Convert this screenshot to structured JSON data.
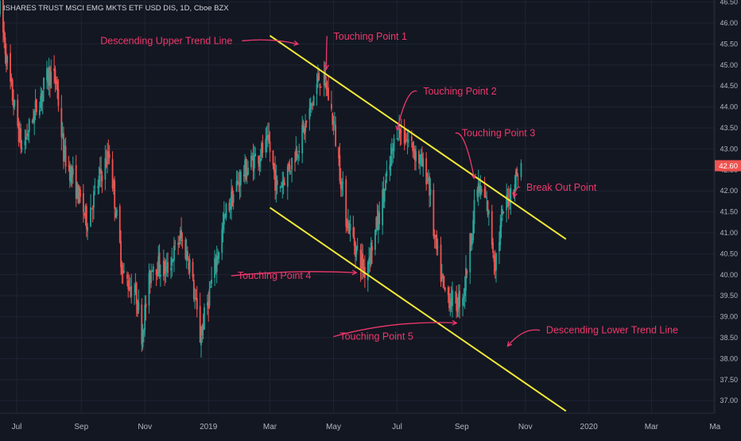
{
  "header": {
    "title": "ISHARES TRUST MSCI EMG MKTS ETF USD DIS, 1D, Cboe BZX"
  },
  "colors": {
    "background": "#131722",
    "grid": "#1e2433",
    "up": "#26a69a",
    "down": "#ef5350",
    "trend_line": "#f0e936",
    "annotation": "#f0386b",
    "price_badge": "#ef5350"
  },
  "chart_data": {
    "type": "candlestick",
    "title": "ISHARES TRUST MSCI EMG MKTS ETF USD DIS, 1D, Cboe BZX",
    "y_axis": {
      "position": "right",
      "ylim": [
        36.7,
        46.55
      ],
      "ticks": [
        "37.00",
        "37.50",
        "38.00",
        "38.50",
        "39.00",
        "39.50",
        "40.00",
        "40.50",
        "41.00",
        "41.50",
        "42.00",
        "42.50",
        "43.00",
        "43.50",
        "44.00",
        "44.50",
        "45.00",
        "45.50",
        "46.00",
        "46.50"
      ]
    },
    "x_axis": {
      "type": "date",
      "range": [
        "2018-06-15",
        "2020-04-30"
      ],
      "ticks": [
        {
          "label": "Jul",
          "date": "2018-07-01"
        },
        {
          "label": "Sep",
          "date": "2018-09-01"
        },
        {
          "label": "Nov",
          "date": "2018-11-01"
        },
        {
          "label": "2019",
          "date": "2019-01-01"
        },
        {
          "label": "Mar",
          "date": "2019-03-01"
        },
        {
          "label": "May",
          "date": "2019-05-01"
        },
        {
          "label": "Jul",
          "date": "2019-07-01"
        },
        {
          "label": "Sep",
          "date": "2019-09-01"
        },
        {
          "label": "Nov",
          "date": "2019-11-01"
        },
        {
          "label": "2020",
          "date": "2020-01-01"
        },
        {
          "label": "Mar",
          "date": "2020-03-01"
        },
        {
          "label": "Ma",
          "date": "2020-05-01"
        }
      ]
    },
    "grid": true,
    "current_price": "42.60",
    "price_path": [
      [
        "2018-06-15",
        46.3
      ],
      [
        "2018-06-25",
        44.5
      ],
      [
        "2018-07-06",
        43.0
      ],
      [
        "2018-07-20",
        44.0
      ],
      [
        "2018-08-01",
        44.8
      ],
      [
        "2018-08-08",
        44.6
      ],
      [
        "2018-08-15",
        42.9
      ],
      [
        "2018-08-24",
        42.3
      ],
      [
        "2018-09-06",
        41.3
      ],
      [
        "2018-09-20",
        42.4
      ],
      [
        "2018-09-28",
        42.9
      ],
      [
        "2018-10-11",
        40.0
      ],
      [
        "2018-10-24",
        39.5
      ],
      [
        "2018-10-29",
        38.6
      ],
      [
        "2018-11-08",
        40.3
      ],
      [
        "2018-11-22",
        40.1
      ],
      [
        "2018-12-05",
        40.9
      ],
      [
        "2018-12-14",
        40.3
      ],
      [
        "2018-12-24",
        38.5
      ],
      [
        "2019-01-04",
        39.8
      ],
      [
        "2019-01-18",
        41.5
      ],
      [
        "2019-01-31",
        42.3
      ],
      [
        "2019-02-15",
        42.8
      ],
      [
        "2019-02-28",
        43.1
      ],
      [
        "2019-03-08",
        42.0
      ],
      [
        "2019-03-22",
        42.7
      ],
      [
        "2019-04-05",
        43.6
      ],
      [
        "2019-04-17",
        44.7
      ],
      [
        "2019-04-24",
        44.5
      ],
      [
        "2019-05-01",
        43.6
      ],
      [
        "2019-05-13",
        41.4
      ],
      [
        "2019-05-23",
        40.6
      ],
      [
        "2019-05-31",
        40.1
      ],
      [
        "2019-06-10",
        41.0
      ],
      [
        "2019-06-24",
        42.6
      ],
      [
        "2019-07-01",
        43.5
      ],
      [
        "2019-07-15",
        43.1
      ],
      [
        "2019-07-31",
        42.3
      ],
      [
        "2019-08-06",
        40.8
      ],
      [
        "2019-08-15",
        39.6
      ],
      [
        "2019-08-27",
        39.3
      ],
      [
        "2019-09-03",
        39.6
      ],
      [
        "2019-09-16",
        42.1
      ],
      [
        "2019-09-25",
        41.7
      ],
      [
        "2019-10-03",
        40.3
      ],
      [
        "2019-10-11",
        41.5
      ],
      [
        "2019-10-21",
        42.2
      ],
      [
        "2019-10-28",
        42.6
      ]
    ],
    "trend_lines": [
      {
        "label": "Descending Upper Trend Line",
        "start": {
          "date": "2019-03-01",
          "price": 45.7
        },
        "end": {
          "date": "2019-12-10",
          "price": 40.85
        }
      },
      {
        "label": "Descending Lower Trend Line",
        "start": {
          "date": "2019-03-01",
          "price": 41.6
        },
        "end": {
          "date": "2019-12-10",
          "price": 36.75
        }
      }
    ],
    "annotations": [
      {
        "text": "Descending Upper Trend Line",
        "date": "2019-01-24",
        "price": 45.5,
        "align": "right",
        "arrow_to": {
          "date": "2019-03-28",
          "price": 45.5
        }
      },
      {
        "text": "Touching Point 1",
        "date": "2019-05-01",
        "price": 45.6,
        "align": "left",
        "arrow_to": {
          "date": "2019-04-24",
          "price": 44.9
        }
      },
      {
        "text": "Touching Point 2",
        "date": "2019-07-26",
        "price": 44.3,
        "align": "left",
        "arrow_to": {
          "date": "2019-07-01",
          "price": 43.45
        }
      },
      {
        "text": "Touching Point 3",
        "date": "2019-09-01",
        "price": 43.3,
        "align": "left",
        "arrow_to": {
          "date": "2019-09-13",
          "price": 42.3
        }
      },
      {
        "text": "Touching Point 4",
        "date": "2019-01-29",
        "price": 39.9,
        "align": "left",
        "arrow_to": {
          "date": "2019-05-23",
          "price": 40.05
        }
      },
      {
        "text": "Touching Point 5",
        "date": "2019-05-07",
        "price": 38.45,
        "align": "left",
        "arrow_to": {
          "date": "2019-08-27",
          "price": 38.85
        }
      },
      {
        "text": "Break Out Point",
        "date": "2019-11-02",
        "price": 42.0,
        "align": "left",
        "arrow_to": {
          "date": "2019-10-21",
          "price": 41.85
        }
      },
      {
        "text": "Descending Lower Trend Line",
        "date": "2019-11-21",
        "price": 38.6,
        "align": "left",
        "arrow_to": {
          "date": "2019-10-15",
          "price": 38.3
        }
      }
    ]
  }
}
